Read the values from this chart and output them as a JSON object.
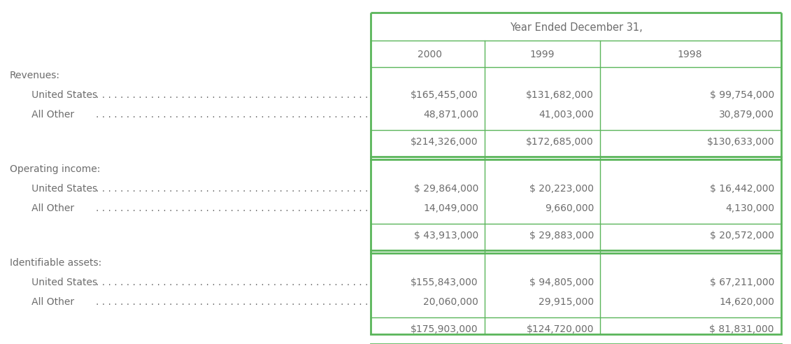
{
  "header_group": "Year Ended December 31,",
  "years": [
    "2000",
    "1999",
    "1998"
  ],
  "sections": [
    {
      "label": "Revenues:",
      "rows": [
        {
          "name": "United States",
          "values": [
            "$165,455,000",
            "$131,682,000",
            "$ 99,754,000"
          ]
        },
        {
          "name": "All Other",
          "values": [
            "48,871,000",
            "41,003,000",
            "30,879,000"
          ]
        }
      ],
      "total": [
        "$214,326,000",
        "$172,685,000",
        "$130,633,000"
      ]
    },
    {
      "label": "Operating income:",
      "rows": [
        {
          "name": "United States",
          "values": [
            "$ 29,864,000",
            "$ 20,223,000",
            "$ 16,442,000"
          ]
        },
        {
          "name": "All Other",
          "values": [
            "14,049,000",
            "9,660,000",
            "4,130,000"
          ]
        }
      ],
      "total": [
        "$ 43,913,000",
        "$ 29,883,000",
        "$ 20,572,000"
      ]
    },
    {
      "label": "Identifiable assets:",
      "rows": [
        {
          "name": "United States",
          "values": [
            "$155,843,000",
            "$ 94,805,000",
            "$ 67,211,000"
          ]
        },
        {
          "name": "All Other",
          "values": [
            "20,060,000",
            "29,915,000",
            "14,620,000"
          ]
        }
      ],
      "total": [
        "$175,903,000",
        "$124,720,000",
        "$ 81,831,000"
      ]
    }
  ],
  "green": "#5ab55a",
  "text_color": "#6d6d6d",
  "bg": "#ffffff",
  "fs": 10.0
}
